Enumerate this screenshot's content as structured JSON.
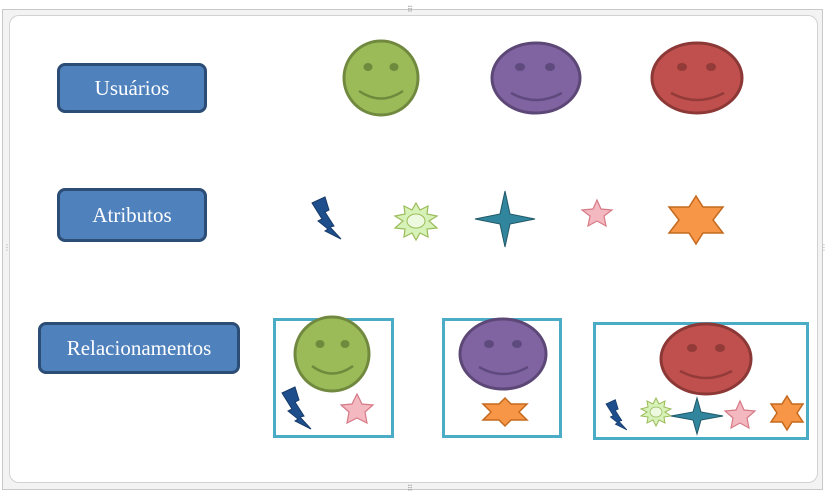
{
  "labels": {
    "users": "Usuários",
    "attributes": "Atributos",
    "relationships": "Relacionamentos"
  },
  "colors": {
    "label_fill": "#4f81bd",
    "label_border": "#2c4d75",
    "group_border": "#4bacc6",
    "green": "#9bbb59",
    "purple": "#8064a2",
    "red": "#c0504d",
    "orange": "#f79646",
    "pink": "#f4b8c0",
    "teal": "#31859c",
    "blue": "#1f4e8c",
    "light_green": "#d7f2b8"
  },
  "icons": {
    "users": [
      "smiley-green-icon",
      "smiley-purple-icon",
      "smiley-red-icon"
    ],
    "attributes": [
      "lightning-icon",
      "sun-icon",
      "four-point-star-icon",
      "five-point-star-icon",
      "six-point-star-icon"
    ]
  }
}
